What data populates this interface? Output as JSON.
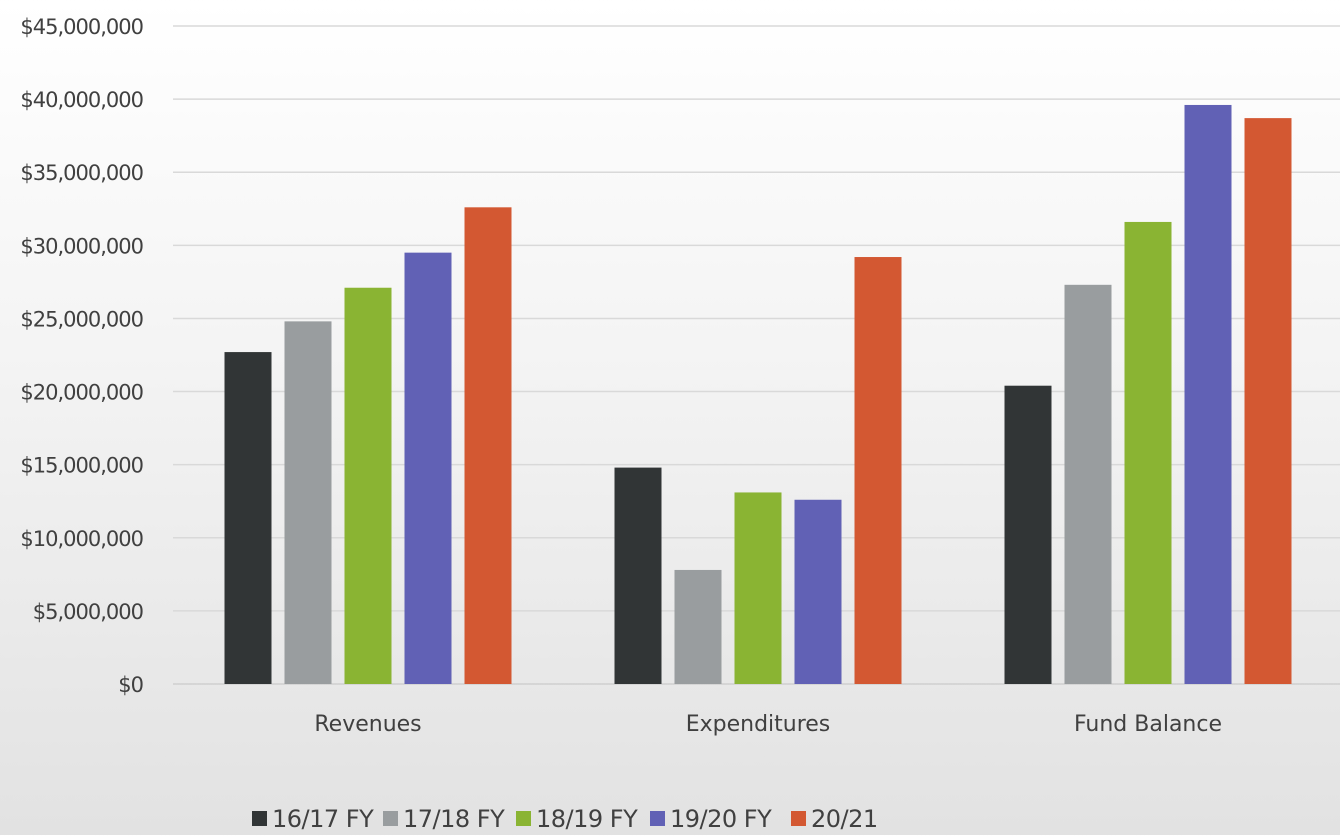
{
  "chart_data": {
    "type": "bar",
    "title": "",
    "xlabel": "",
    "ylabel": "",
    "categories": [
      "Revenues",
      "Expenditures",
      "Fund Balance"
    ],
    "series": [
      {
        "name": "16/17 FY",
        "color": "#313536",
        "values": [
          22700000,
          14800000,
          20400000
        ]
      },
      {
        "name": "17/18 FY",
        "color": "#999d9f",
        "values": [
          24800000,
          7800000,
          27300000
        ]
      },
      {
        "name": "18/19 FY",
        "color": "#8ab433",
        "values": [
          27100000,
          13100000,
          31600000
        ]
      },
      {
        "name": "19/20 FY",
        "color": "#6161b5",
        "values": [
          29500000,
          12600000,
          39600000
        ]
      },
      {
        "name": "20/21",
        "color": "#d35832",
        "values": [
          32600000,
          29200000,
          38700000
        ]
      }
    ],
    "ylim": [
      0,
      45000000
    ],
    "ytick_labels": [
      "$0",
      "$5,000,000",
      "$10,000,000",
      "$15,000,000",
      "$20,000,000",
      "$25,000,000",
      "$30,000,000",
      "$35,000,000",
      "$40,000,000",
      "$45,000,000"
    ],
    "grid": true,
    "legend_position": "bottom"
  }
}
